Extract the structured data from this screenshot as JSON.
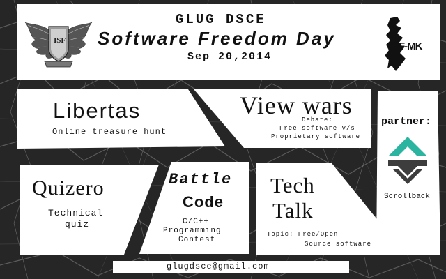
{
  "header": {
    "org": "GLUG DSCE",
    "title": "Software Freedom Day",
    "date": "Sep 20,2014",
    "left_logo": {
      "icon": "winged-shield-logo",
      "text": "ISF"
    },
    "right_logo": {
      "icon": "karnataka-map-logo",
      "text": "F-MK"
    }
  },
  "events": {
    "libertas": {
      "name": "Libertas",
      "desc": "Online treasure hunt"
    },
    "viewwars": {
      "name": "View wars",
      "desc_line1": "Debate:",
      "desc_line2": "Free software v/s",
      "desc_line3": "Proprietary software"
    },
    "quizero": {
      "name": "Quizero",
      "desc_line1": "Technical",
      "desc_line2": "quiz"
    },
    "battlecode": {
      "name_line1": "Battle",
      "name_line2": "Code",
      "desc_line1": "C/C++",
      "desc_line2": "Programming",
      "desc_line3": "Contest"
    },
    "techtalk": {
      "name_line1": "Tech",
      "name_line2": "Talk",
      "desc_line1": "Topic: Free/Open",
      "desc_line2": "Source  software"
    }
  },
  "partner": {
    "label": "partner:",
    "name": "Scrollback",
    "icon": "scrollback-logo",
    "colors": {
      "top": "#2bb5a0",
      "bottom": "#3d3d3d"
    }
  },
  "footer": {
    "email": "glugdsce@gmail.com"
  },
  "colors": {
    "background": "#2b2b2b",
    "panel": "#ffffff",
    "text": "#111111"
  }
}
